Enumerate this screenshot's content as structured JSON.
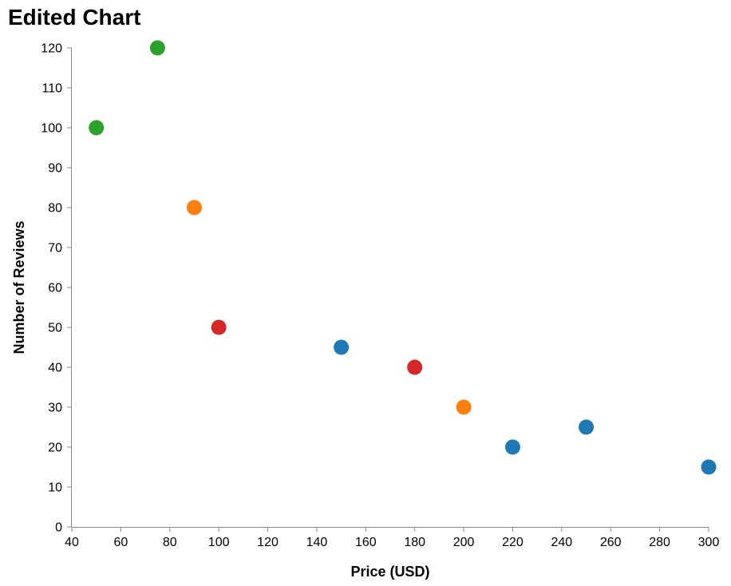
{
  "chart_data": {
    "type": "scatter",
    "title": "Edited Chart",
    "xlabel": "Price (USD)",
    "ylabel": "Number of Reviews",
    "xlim": [
      40,
      300
    ],
    "ylim": [
      0,
      120
    ],
    "x_ticks": [
      40,
      60,
      80,
      100,
      120,
      140,
      160,
      180,
      200,
      220,
      240,
      260,
      280,
      300
    ],
    "y_ticks": [
      0,
      10,
      20,
      30,
      40,
      50,
      60,
      70,
      80,
      90,
      100,
      110,
      120
    ],
    "grid": false,
    "legend": "none",
    "colors": {
      "blue": "#1f77b4",
      "orange": "#ff7f0e",
      "green": "#2ca02c",
      "red": "#d62728"
    },
    "points": [
      {
        "x": 50,
        "y": 100,
        "color": "green"
      },
      {
        "x": 75,
        "y": 120,
        "color": "green"
      },
      {
        "x": 90,
        "y": 80,
        "color": "orange"
      },
      {
        "x": 100,
        "y": 50,
        "color": "red"
      },
      {
        "x": 150,
        "y": 45,
        "color": "blue"
      },
      {
        "x": 180,
        "y": 40,
        "color": "red"
      },
      {
        "x": 200,
        "y": 30,
        "color": "orange"
      },
      {
        "x": 220,
        "y": 20,
        "color": "blue"
      },
      {
        "x": 250,
        "y": 25,
        "color": "blue"
      },
      {
        "x": 300,
        "y": 15,
        "color": "blue"
      }
    ]
  }
}
